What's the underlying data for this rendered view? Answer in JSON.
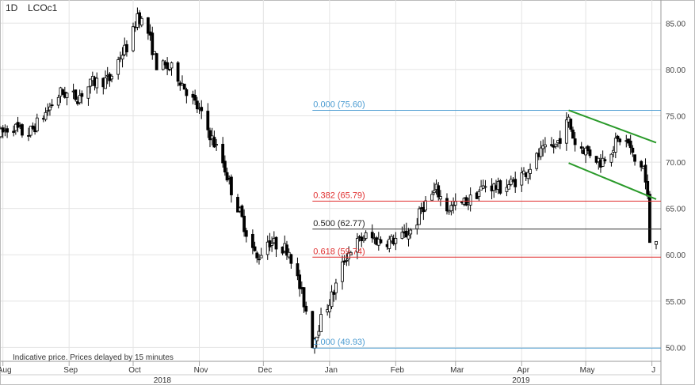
{
  "header": {
    "timeframe": "1D",
    "symbol": "LCOc1"
  },
  "footer_note": "Indicative price. Prices delayed by 15 minutes",
  "chart_data": {
    "type": "candlestick",
    "ylim": [
      48.5,
      87.5
    ],
    "y_ticks": [
      {
        "value": 50,
        "label": "50.00"
      },
      {
        "value": 55,
        "label": "55.00"
      },
      {
        "value": 60,
        "label": "60.00"
      },
      {
        "value": 65,
        "label": "65.00"
      },
      {
        "value": 70,
        "label": "70.00"
      },
      {
        "value": 75,
        "label": "75.00"
      },
      {
        "value": 80,
        "label": "80.00"
      },
      {
        "value": 85,
        "label": "85.00"
      }
    ],
    "x_months": [
      {
        "label": "Aug",
        "date": "2018-08-01"
      },
      {
        "label": "Sep",
        "date": "2018-09-01"
      },
      {
        "label": "Oct",
        "date": "2018-10-01"
      },
      {
        "label": "Nov",
        "date": "2018-11-01"
      },
      {
        "label": "Dec",
        "date": "2018-12-01"
      },
      {
        "label": "Jan",
        "date": "2019-01-01"
      },
      {
        "label": "Feb",
        "date": "2019-02-01"
      },
      {
        "label": "Mar",
        "date": "2019-03-01"
      },
      {
        "label": "Apr",
        "date": "2019-04-01"
      },
      {
        "label": "May",
        "date": "2019-05-01"
      },
      {
        "label": "J",
        "date": "2019-06-01"
      }
    ],
    "x_years": [
      {
        "label": "2018",
        "date": "2018-10-15"
      },
      {
        "label": "2019",
        "date": "2019-04-01"
      }
    ],
    "date_range": [
      "2018-07-31",
      "2019-06-03"
    ],
    "fib_levels": [
      {
        "ratio": "0.000",
        "value": 75.6,
        "label": "0.000 (75.60)",
        "color": "#4a9bd1",
        "start": "2018-12-24"
      },
      {
        "ratio": "0.382",
        "value": 65.79,
        "label": "0.382 (65.79)",
        "color": "#e03030",
        "start": "2018-12-24"
      },
      {
        "ratio": "0.500",
        "value": 62.77,
        "label": "0.500 (62.77)",
        "color": "#333333",
        "start": "2018-12-24"
      },
      {
        "ratio": "0.618",
        "value": 59.74,
        "label": "0.618 (59.74)",
        "color": "#e03030",
        "start": "2018-12-24"
      },
      {
        "ratio": "1.000",
        "value": 49.93,
        "label": "1.000 (49.93)",
        "color": "#4a9bd1",
        "start": "2018-12-24"
      }
    ],
    "trend_lines": [
      {
        "name": "upper",
        "from": {
          "date": "2019-04-23",
          "value": 75.6
        },
        "to": {
          "date": "2019-06-03",
          "value": 72.1
        },
        "color": "#2a9a2a"
      },
      {
        "name": "lower",
        "from": {
          "date": "2019-04-23",
          "value": 69.9
        },
        "to": {
          "date": "2019-06-03",
          "value": 66.0
        },
        "color": "#2a9a2a"
      }
    ],
    "anchors": [
      [
        "2018-07-31",
        73.0
      ],
      [
        "2018-08-05",
        74.0
      ],
      [
        "2018-08-12",
        72.8
      ],
      [
        "2018-08-20",
        75.0
      ],
      [
        "2018-08-28",
        77.5
      ],
      [
        "2018-09-05",
        77.0
      ],
      [
        "2018-09-12",
        78.6
      ],
      [
        "2018-09-20",
        78.9
      ],
      [
        "2018-09-25",
        81.5
      ],
      [
        "2018-09-30",
        83.0
      ],
      [
        "2018-10-03",
        86.0
      ],
      [
        "2018-10-08",
        84.0
      ],
      [
        "2018-10-12",
        80.5
      ],
      [
        "2018-10-20",
        80.0
      ],
      [
        "2018-10-28",
        77.0
      ],
      [
        "2018-11-01",
        75.5
      ],
      [
        "2018-11-06",
        73.0
      ],
      [
        "2018-11-12",
        70.0
      ],
      [
        "2018-11-16",
        67.0
      ],
      [
        "2018-11-20",
        64.5
      ],
      [
        "2018-11-23",
        62.5
      ],
      [
        "2018-11-28",
        59.5
      ],
      [
        "2018-12-03",
        61.5
      ],
      [
        "2018-12-08",
        61.0
      ],
      [
        "2018-12-13",
        60.5
      ],
      [
        "2018-12-18",
        56.5
      ],
      [
        "2018-12-21",
        54.0
      ],
      [
        "2018-12-24",
        50.5
      ],
      [
        "2018-12-28",
        53.0
      ],
      [
        "2019-01-03",
        56.0
      ],
      [
        "2019-01-08",
        59.5
      ],
      [
        "2019-01-12",
        61.0
      ],
      [
        "2019-01-18",
        62.0
      ],
      [
        "2019-01-24",
        61.5
      ],
      [
        "2019-01-30",
        61.5
      ],
      [
        "2019-02-05",
        62.0
      ],
      [
        "2019-02-10",
        63.0
      ],
      [
        "2019-02-13",
        65.0
      ],
      [
        "2019-02-20",
        67.0
      ],
      [
        "2019-02-25",
        65.0
      ],
      [
        "2019-03-04",
        65.5
      ],
      [
        "2019-03-08",
        66.0
      ],
      [
        "2019-03-15",
        67.5
      ],
      [
        "2019-03-22",
        67.2
      ],
      [
        "2019-03-28",
        67.8
      ],
      [
        "2019-04-03",
        69.0
      ],
      [
        "2019-04-10",
        71.0
      ],
      [
        "2019-04-17",
        71.8
      ],
      [
        "2019-04-23",
        74.5
      ],
      [
        "2019-04-26",
        72.0
      ],
      [
        "2019-05-03",
        71.0
      ],
      [
        "2019-05-08",
        70.0
      ],
      [
        "2019-05-13",
        71.5
      ],
      [
        "2019-05-17",
        72.5
      ],
      [
        "2019-05-21",
        72.0
      ],
      [
        "2019-05-24",
        70.0
      ],
      [
        "2019-05-28",
        69.5
      ],
      [
        "2019-05-30",
        66.0
      ],
      [
        "2019-05-31",
        61.5
      ],
      [
        "2019-06-03",
        62.0
      ]
    ]
  }
}
